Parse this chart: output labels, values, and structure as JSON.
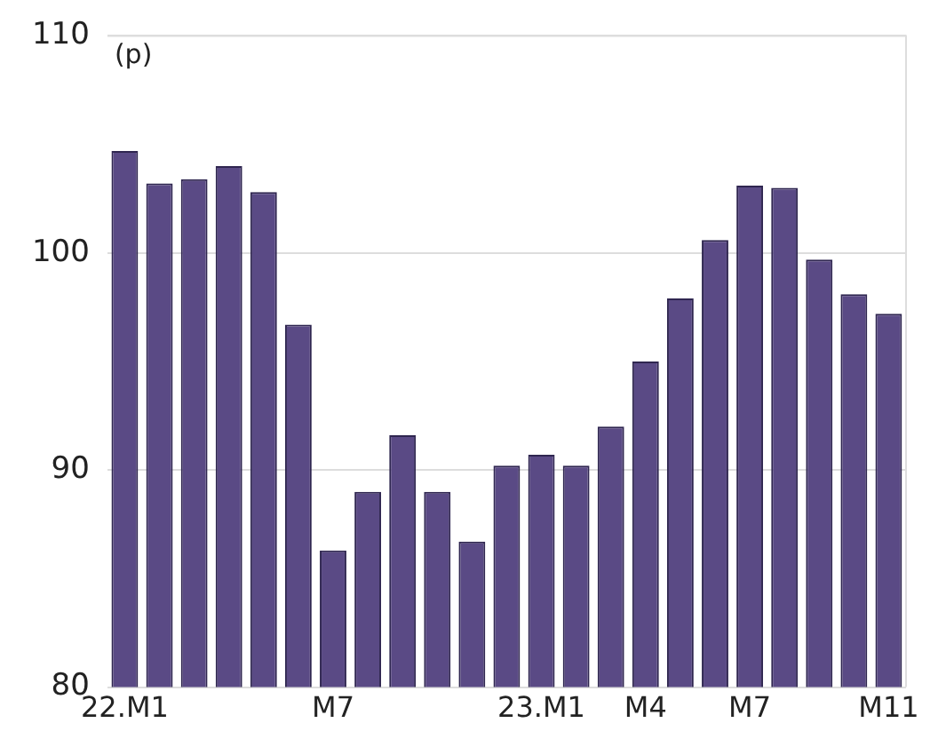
{
  "chart_data": {
    "type": "bar",
    "ylabel": "(p)",
    "categories": [
      "22.M1",
      null,
      null,
      null,
      null,
      null,
      "M7",
      null,
      null,
      null,
      null,
      null,
      "23.M1",
      null,
      null,
      "M4",
      null,
      null,
      "M7",
      null,
      null,
      null,
      "M11"
    ],
    "values": [
      104.7,
      103.2,
      103.4,
      104.0,
      102.8,
      96.7,
      86.3,
      89.0,
      91.6,
      89.0,
      86.7,
      90.2,
      90.7,
      90.2,
      92.0,
      95.0,
      97.9,
      100.6,
      103.1,
      103.0,
      99.7,
      98.1,
      97.2
    ],
    "color": "#5a4a85",
    "ylim": [
      80,
      110
    ],
    "yticks": [
      80,
      90,
      100,
      110
    ],
    "grid": "y"
  }
}
